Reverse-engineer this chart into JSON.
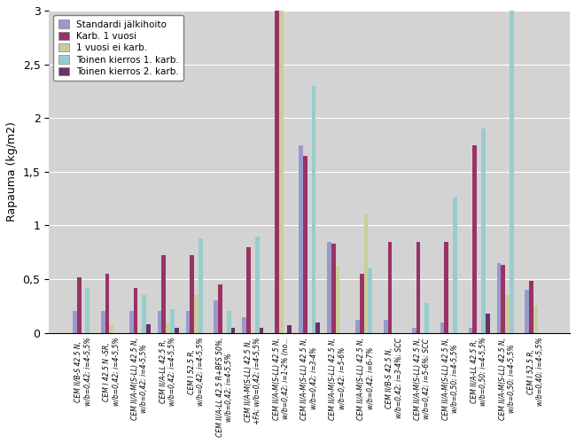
{
  "title": "",
  "ylabel": "Rapauma (kg/m2)",
  "ylim": [
    0,
    3.0
  ],
  "yticks": [
    0,
    0.5,
    1.0,
    1.5,
    2.0,
    2.5,
    3.0
  ],
  "categories": [
    "CEM II/B-S 42.5 N; w/b=0.42; i=4-5.5%",
    "CEM I 42.5 N -SR; w/b=0.42; i=4-5.5%",
    "CEM II/A-M(S-LL) 42.5 N; w/b=0.42; i=4-5.5%",
    "CEM II/A-LL 42.5 R; w/b=0.42; i=4-5.5%",
    "CEM I 52.5 R; w/b=0.42; i=4-5.5%",
    "CEM II/A-LL 42.5 R+BFS 50%; w/b=0.42; i=4-5.5%",
    "CEM II/A-M(S-LL) 42.5 N; +FA; w/b=0.42; i=4-5.5%",
    "CEM II/A-M(S-LL) 42.5 N; w/b=0.42; i=1-2% (no...",
    "CEM II/A-M(S-LL) 42.5 N; w/b=0.42; i=3-4%",
    "CEM II/A-M(S-LL) 42.5 N; w/b=0.42; i=5-6%",
    "CEM II/A-M(S-LL) 42.5 N; w/b=0.42; i=6-7%",
    "CEM II/B-S 42.5 N; w/b=0.42; i=3-4%; SCC",
    "CEM II/A-M(S-LL) 42.5 N; w/b=0.42; i=5-6%; SCC",
    "CEM II/A-M(S-LL) 42.5 N; w/b=0.50; i=4-5.5%",
    "CEM II/A-LL 42.5 R; w/b=0.50; i=4-5.5%",
    "CEM II/A-M(S-LL) 42.5 N; w/b=0.50; i=4-5.5%",
    "CEM I 52.5 R; w/b=0.40; i=4-5.5%"
  ],
  "short_labels": [
    "CEM II/B-S 42.5 N,\nw/b=0,42; i=4-5,5%",
    "CEM I 42.5 N -SR,\nw/b=0,42; i=4-5,5%",
    "CEM II/A-M(S-LL) 42.5 N,\nw/b=0,42; i=4-5,5%",
    "CEM II/A-LL 42.5 R,\nw/b=0,42; i=4-5,5%",
    "CEM I 52.5 R,\nw/b=0,42; i=4-5,5%",
    "CEM II/A-LL 42.5 R+BFS 50%,\nw/b=0,42; i=4-5,5%",
    "CEM II/A-M(S-LL) 42.5 N,\n+FA; w/b=0,42; i=4-5,5%",
    "CEM II/A-M(S-LL) 42.5 N,\nw/b=0,42; i=1-2% (no...",
    "CEM II/A-M(S-LL) 42.5 N,\nw/b=0,42; i=3-4%",
    "CEM II/A-M(S-LL) 42.5 N,\nw/b=0,42; i=5-6%",
    "CEM II/A-M(S-LL) 42.5 N,\nw/b=0,42; i=6-7%",
    "CEM II/B-S 42.5 N,\nw/b=0,42; i=3-4%; SCC",
    "CEM II/A-M(S-LL) 42.5 N,\nw/b=0,42; i=5-6%; SCC",
    "CEM II/A-M(S-LL) 42.5 N,\nw/b=0,50; i=4-5,5%",
    "CEM II/A-LL 42.5 R,\nw/b=0,50; i=4-5,5%",
    "CEM II/A-M(S-LL) 42.5 N,\nw/b=0,50; i=4-5,5%",
    "CEM I 52.5 R,\nw/b=0,40; i=4-5,5%"
  ],
  "series": {
    "Standardi jälkihoito": {
      "color": "#9999CC",
      "values": [
        0.2,
        0.2,
        0.2,
        0.2,
        0.2,
        0.3,
        0.15,
        0.0,
        1.75,
        0.85,
        0.12,
        0.12,
        0.05,
        0.1,
        0.05,
        0.65,
        0.4
      ]
    },
    "Karb. 1 vuosi": {
      "color": "#993366",
      "values": [
        0.52,
        0.55,
        0.42,
        0.72,
        0.72,
        0.45,
        0.8,
        3.0,
        1.65,
        0.83,
        0.55,
        0.85,
        0.85,
        0.85,
        1.75,
        0.63,
        0.48
      ]
    },
    "1 vuosi ei karb.": {
      "color": "#CCCC99",
      "values": [
        0.0,
        0.07,
        0.0,
        0.1,
        0.35,
        0.0,
        0.0,
        3.0,
        0.0,
        0.62,
        1.1,
        0.0,
        0.0,
        0.0,
        0.0,
        0.35,
        0.25
      ]
    },
    "Toinen kierros 1. karb.": {
      "color": "#99CCCC",
      "values": [
        0.42,
        0.0,
        0.35,
        0.22,
        0.88,
        0.2,
        0.9,
        0.0,
        2.3,
        0.0,
        0.6,
        0.0,
        0.28,
        1.27,
        1.9,
        3.0,
        0.0
      ]
    },
    "Toinen kierros 2. karb.": {
      "color": "#663366",
      "values": [
        0.0,
        0.0,
        0.08,
        0.05,
        0.0,
        0.05,
        0.05,
        0.07,
        0.1,
        0.0,
        0.0,
        0.0,
        0.0,
        0.0,
        0.18,
        0.0,
        0.0
      ]
    }
  },
  "legend_order": [
    "Standardi jälkihoito",
    "Karb. 1 vuosi",
    "1 vuosi ei karb.",
    "Toinen kierros 1. karb.",
    "Toinen kierros 2. karb."
  ],
  "background_color": "#D3D3D3",
  "grid_color": "#FFFFFF",
  "bar_width": 0.15,
  "figsize": [
    6.5,
    5.0
  ]
}
